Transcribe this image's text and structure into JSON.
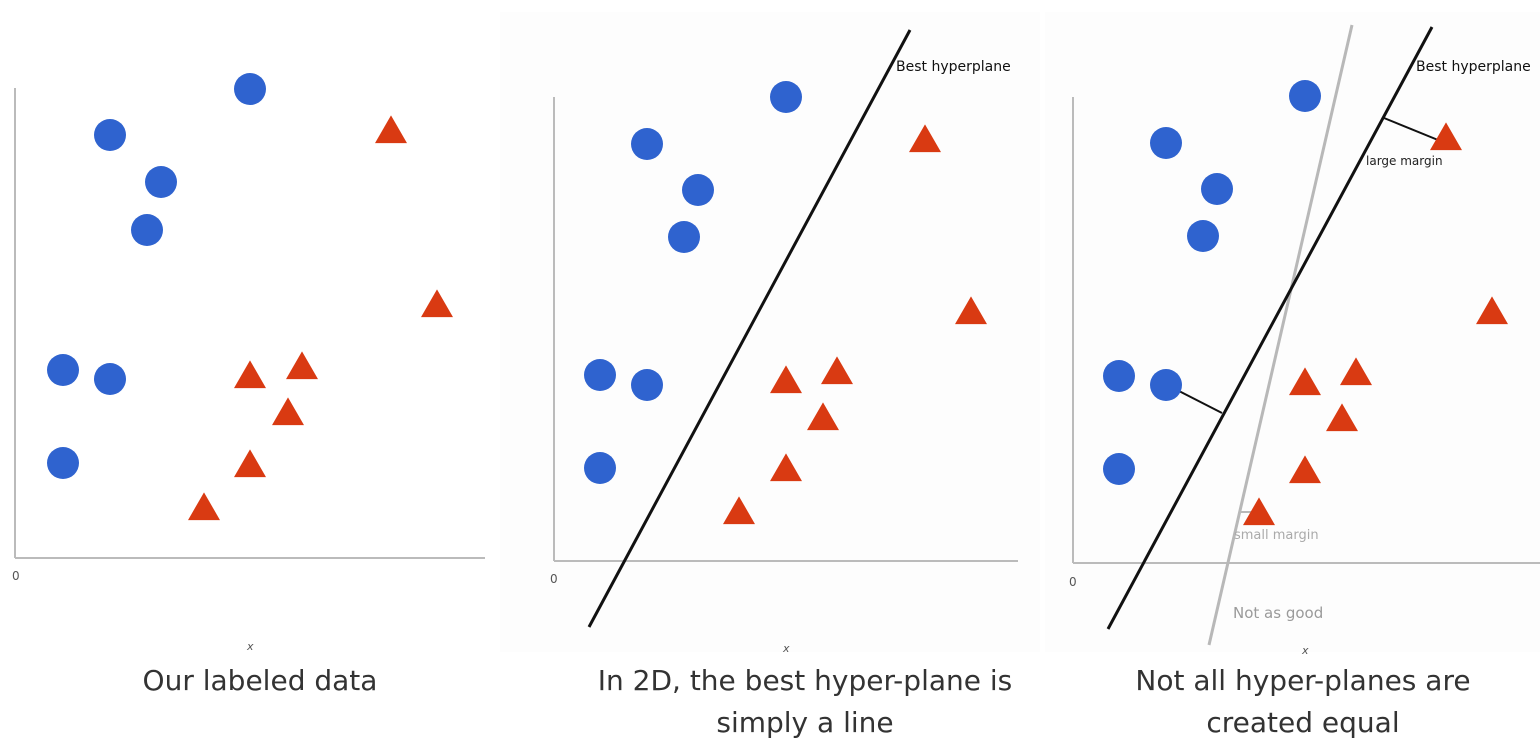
{
  "colors": {
    "circle": "#2f63cf",
    "triangle": "#d93a12",
    "axis": "#bbbbbb",
    "line": "#111111",
    "grey_line": "#b8b8b8"
  },
  "panels": [
    {
      "id": "labeled-data",
      "origin_label": "0",
      "x_label": "x",
      "caption_lines": [
        "Our labeled data"
      ],
      "hyperplane_label": "",
      "circles": [
        [
          250,
          89
        ],
        [
          110,
          135
        ],
        [
          161,
          182
        ],
        [
          147,
          230
        ],
        [
          63,
          370
        ],
        [
          110,
          379
        ],
        [
          63,
          463
        ]
      ],
      "triangles": [
        [
          391,
          132
        ],
        [
          437,
          306
        ],
        [
          250,
          377
        ],
        [
          302,
          368
        ],
        [
          288,
          414
        ],
        [
          250,
          466
        ],
        [
          204,
          509
        ]
      ]
    },
    {
      "id": "best-hyperplane",
      "origin_label": "0",
      "x_label": "x",
      "caption_lines": [
        "In 2D, the best hyper-plane is",
        "simply a line"
      ],
      "hyperplane_label": "Best hyperplane",
      "circles": [
        [
          786,
          97
        ],
        [
          647,
          144
        ],
        [
          698,
          190
        ],
        [
          684,
          237
        ],
        [
          600,
          375
        ],
        [
          647,
          385
        ],
        [
          600,
          468
        ]
      ],
      "triangles": [
        [
          925,
          141
        ],
        [
          971,
          313
        ],
        [
          786,
          382
        ],
        [
          837,
          373
        ],
        [
          823,
          419
        ],
        [
          786,
          470
        ],
        [
          739,
          513
        ]
      ]
    },
    {
      "id": "not-equal",
      "origin_label": "0",
      "x_label": "x",
      "caption_lines": [
        "Not all hyper-planes are",
        "created equal"
      ],
      "hyperplane_label": "Best hyperplane",
      "large_margin_label": "large margin",
      "small_margin_label": "small margin",
      "not_as_good_label": "Not as good",
      "circles": [
        [
          1305,
          96
        ],
        [
          1166,
          143
        ],
        [
          1217,
          189
        ],
        [
          1203,
          236
        ],
        [
          1119,
          376
        ],
        [
          1166,
          385
        ],
        [
          1119,
          469
        ]
      ],
      "triangles": [
        [
          1446,
          139
        ],
        [
          1492,
          313
        ],
        [
          1305,
          384
        ],
        [
          1356,
          374
        ],
        [
          1342,
          420
        ],
        [
          1305,
          472
        ],
        [
          1259,
          514
        ]
      ]
    }
  ]
}
